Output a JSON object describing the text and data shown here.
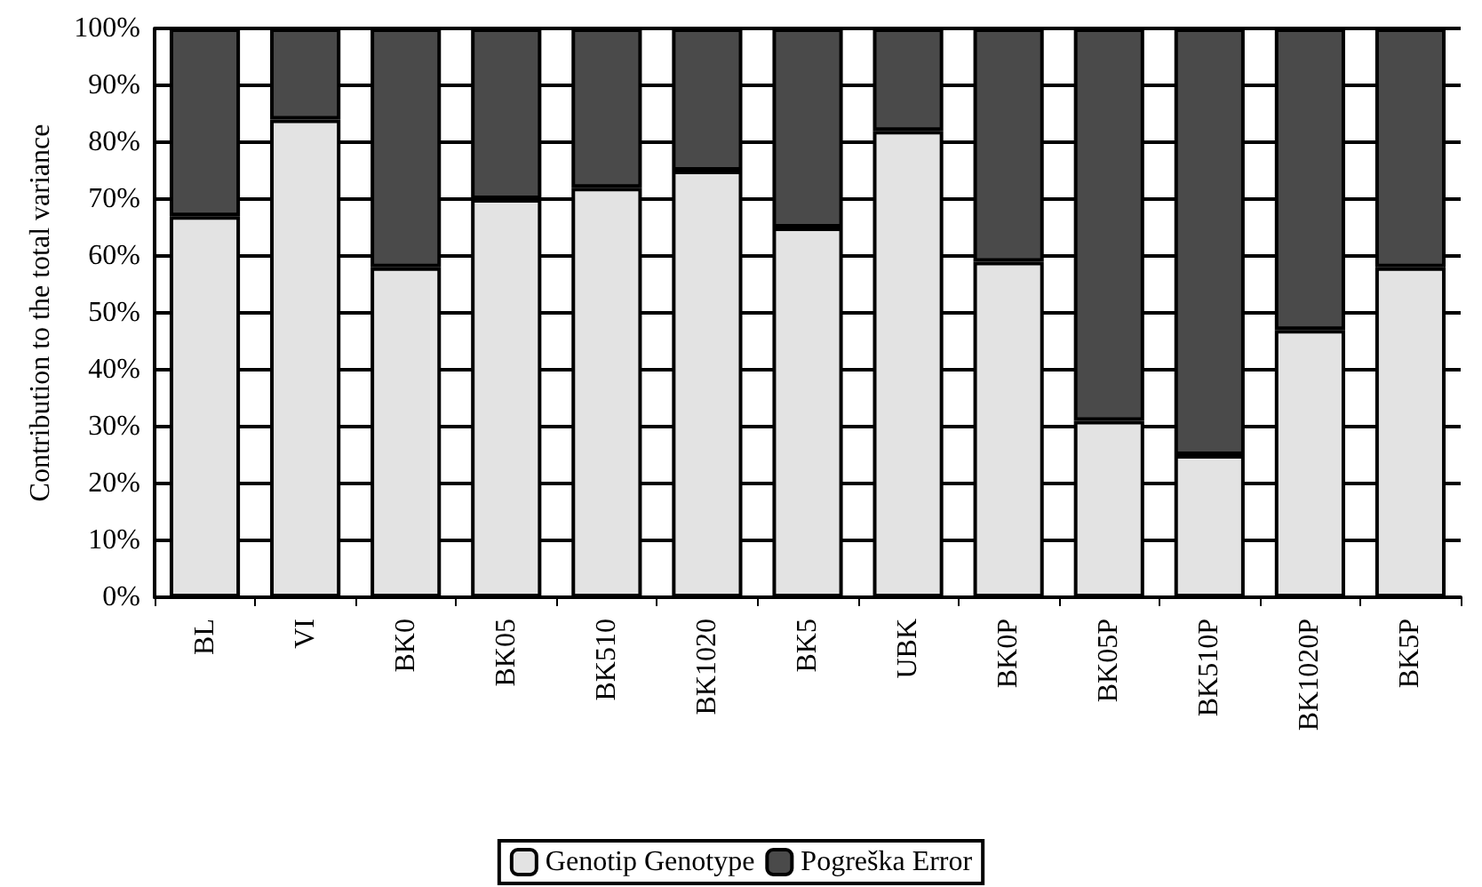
{
  "chart_data": {
    "type": "bar",
    "stacked": true,
    "ylabel": "Contribution to the total variance",
    "categories": [
      "BL",
      "VI",
      "BK0",
      "BK05",
      "BK510",
      "BK1020",
      "BK5",
      "UBK",
      "BK0P",
      "BK05P",
      "BK510P",
      "BK1020P",
      "BK5P"
    ],
    "series": [
      {
        "name": "Genotip Genotype",
        "color": "#e3e3e3",
        "values": [
          67,
          84,
          58,
          70,
          72,
          75,
          65,
          82,
          59,
          31,
          25,
          47,
          58
        ]
      },
      {
        "name": "Pogreška Error",
        "color": "#4a4a4a",
        "values": [
          33,
          16,
          42,
          30,
          28,
          25,
          35,
          18,
          41,
          69,
          75,
          53,
          42
        ]
      }
    ],
    "ylim": [
      0,
      100
    ],
    "yticks": [
      {
        "value": 0,
        "label": "0%"
      },
      {
        "value": 10,
        "label": "10%"
      },
      {
        "value": 20,
        "label": "20%"
      },
      {
        "value": 30,
        "label": "30%"
      },
      {
        "value": 40,
        "label": "40%"
      },
      {
        "value": 50,
        "label": "50%"
      },
      {
        "value": 60,
        "label": "60%"
      },
      {
        "value": 70,
        "label": "70%"
      },
      {
        "value": 80,
        "label": "80%"
      },
      {
        "value": 90,
        "label": "90%"
      },
      {
        "value": 100,
        "label": "100%"
      }
    ],
    "grid": "y",
    "legend": "bottom"
  }
}
